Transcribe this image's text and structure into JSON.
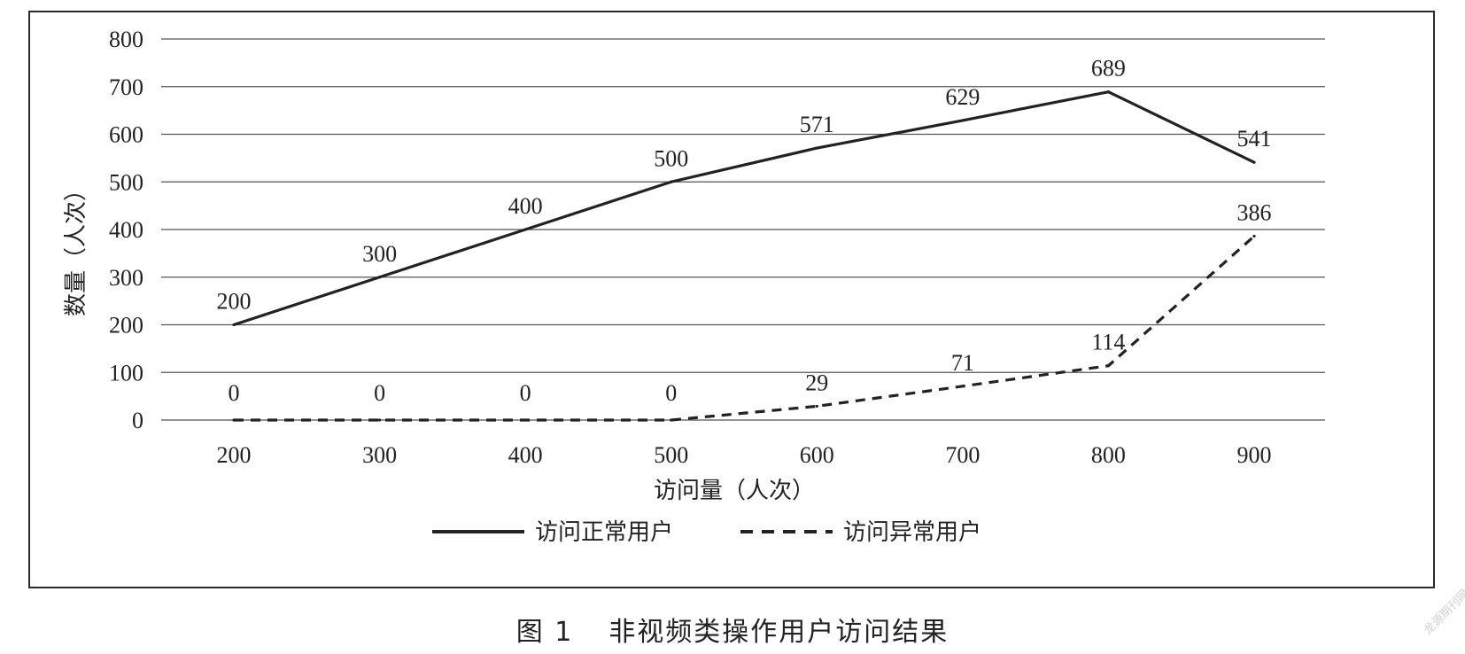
{
  "chart_data": {
    "type": "line",
    "categories": [
      "200",
      "300",
      "400",
      "500",
      "600",
      "700",
      "800",
      "900"
    ],
    "series": [
      {
        "name": "访问正常用户",
        "style": "solid",
        "values": [
          200,
          300,
          400,
          500,
          571,
          629,
          689,
          541
        ],
        "color": "#222222"
      },
      {
        "name": "访问异常用户",
        "style": "dashed",
        "values": [
          0,
          0,
          0,
          0,
          29,
          71,
          114,
          386
        ],
        "color": "#222222"
      }
    ],
    "xlabel": "访问量（人次）",
    "ylabel": "数量（人次）",
    "ylim": [
      0,
      800
    ],
    "yticks": [
      0,
      100,
      200,
      300,
      400,
      500,
      600,
      700,
      800
    ],
    "grid": true,
    "legend": "bottom"
  },
  "caption": {
    "number": "图 1",
    "title": "非视频类操作用户访问结果"
  },
  "watermark": "龙源期刊网"
}
